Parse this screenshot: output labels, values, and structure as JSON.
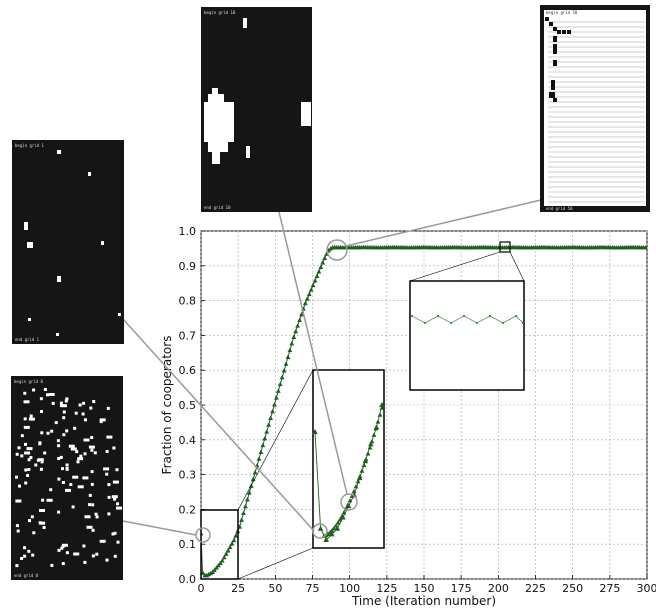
{
  "chart_data": {
    "type": "line",
    "title": "",
    "xlabel": "Time (Iteration number)",
    "ylabel": "Fraction of cooperators",
    "xlim": [
      0,
      300
    ],
    "ylim": [
      0.0,
      1.0
    ],
    "grid": true,
    "x_ticks": [
      "0",
      "25",
      "50",
      "75",
      "100",
      "125",
      "150",
      "175",
      "200",
      "225",
      "250",
      "275",
      "300"
    ],
    "y_ticks": [
      "0.0",
      "0.1",
      "0.2",
      "0.3",
      "0.4",
      "0.5",
      "0.6",
      "0.7",
      "0.8",
      "0.9",
      "1.0"
    ],
    "series": [
      {
        "marker": "triangle",
        "color": "#1f5f1f",
        "x": [
          0,
          1,
          2,
          4,
          6,
          8,
          10,
          12,
          14,
          16,
          18,
          20,
          22,
          24,
          26,
          28,
          30,
          32,
          34,
          36,
          38,
          40,
          42,
          44,
          46,
          48,
          50,
          52,
          54,
          56,
          58,
          60,
          62,
          64,
          66,
          68,
          70,
          72,
          74,
          76,
          78,
          80,
          82,
          84,
          86,
          88,
          90,
          92,
          94,
          96,
          98,
          100,
          110,
          120,
          130,
          140,
          150,
          160,
          170,
          180,
          190,
          200,
          210,
          220,
          230,
          240,
          250,
          260,
          270,
          280,
          290,
          300
        ],
        "y": [
          0.13,
          0.02,
          0.01,
          0.01,
          0.015,
          0.02,
          0.03,
          0.04,
          0.05,
          0.065,
          0.08,
          0.095,
          0.11,
          0.13,
          0.15,
          0.18,
          0.21,
          0.24,
          0.27,
          0.3,
          0.33,
          0.36,
          0.39,
          0.42,
          0.45,
          0.48,
          0.51,
          0.54,
          0.57,
          0.6,
          0.63,
          0.66,
          0.69,
          0.715,
          0.74,
          0.765,
          0.79,
          0.81,
          0.83,
          0.85,
          0.87,
          0.89,
          0.91,
          0.93,
          0.945,
          0.952,
          0.953,
          0.952,
          0.953,
          0.952,
          0.953,
          0.952,
          0.953,
          0.952,
          0.953,
          0.952,
          0.953,
          0.952,
          0.953,
          0.952,
          0.953,
          0.952,
          0.953,
          0.952,
          0.953,
          0.952,
          0.953,
          0.952,
          0.953,
          0.952,
          0.953,
          0.952
        ]
      }
    ],
    "zoom_inset": {
      "x": [
        0,
        2,
        4,
        6,
        8,
        10,
        12,
        14,
        16,
        18,
        20,
        22,
        24
      ],
      "y": [
        0.13,
        0.02,
        0.01,
        0.015,
        0.02,
        0.03,
        0.04,
        0.05,
        0.065,
        0.08,
        0.095,
        0.11,
        0.13
      ]
    },
    "grid_snapshots": [
      {
        "top_label": "begin grid 0",
        "bottom_label": "end grid 0"
      },
      {
        "top_label": "begin grid 1",
        "bottom_label": "end grid 1"
      },
      {
        "top_label": "begin grid 10",
        "bottom_label": "end grid 10"
      },
      {
        "top_label": "begin grid 50",
        "bottom_label": "end grid 50"
      }
    ]
  }
}
